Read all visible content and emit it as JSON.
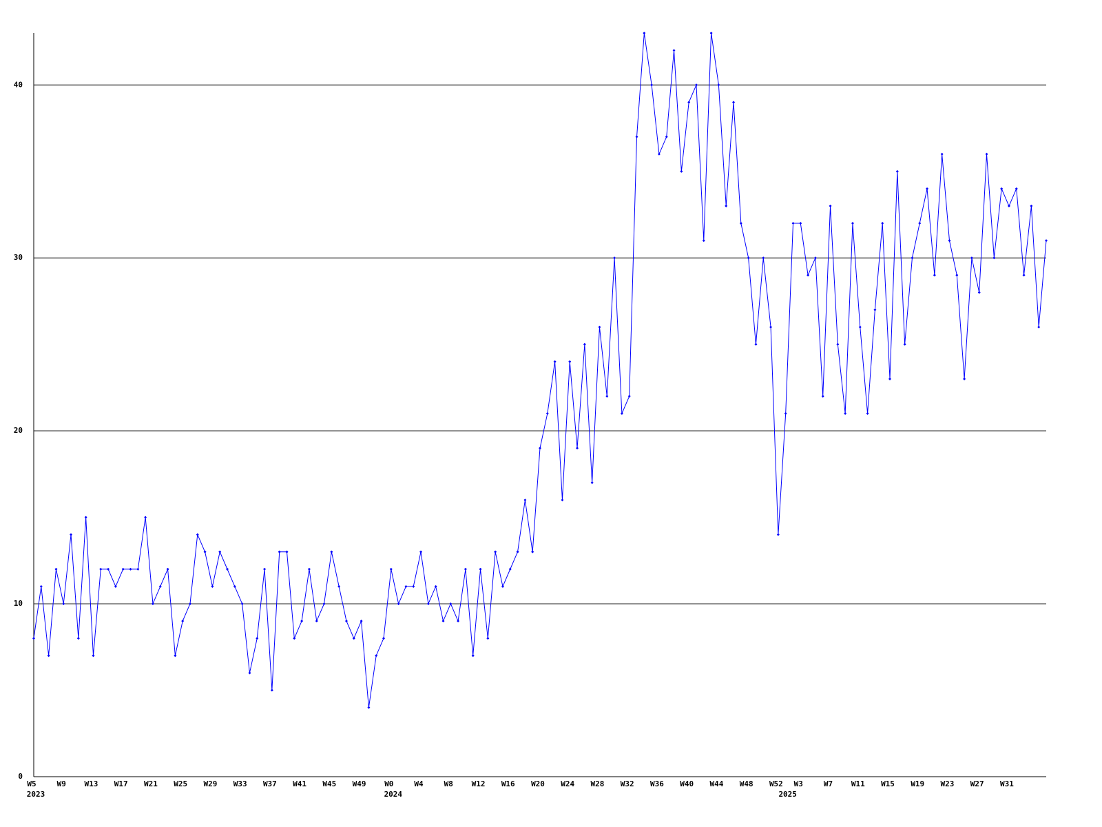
{
  "chart_data": {
    "type": "line",
    "categories": [
      "W5",
      null,
      null,
      null,
      "W9",
      null,
      null,
      null,
      "W13",
      null,
      null,
      null,
      "W17",
      null,
      null,
      null,
      "W21",
      null,
      null,
      null,
      "W25",
      null,
      null,
      null,
      "W29",
      null,
      null,
      null,
      "W33",
      null,
      null,
      null,
      "W37",
      null,
      null,
      null,
      "W41",
      null,
      null,
      null,
      "W45",
      null,
      null,
      null,
      "W49",
      null,
      null,
      null,
      "W0",
      null,
      null,
      null,
      "W4",
      null,
      null,
      null,
      "W8",
      null,
      null,
      null,
      "W12",
      null,
      null,
      null,
      "W16",
      null,
      null,
      null,
      "W20",
      null,
      null,
      null,
      "W24",
      null,
      null,
      null,
      "W28",
      null,
      null,
      null,
      "W32",
      null,
      null,
      null,
      "W36",
      null,
      null,
      null,
      "W40",
      null,
      null,
      null,
      "W44",
      null,
      null,
      null,
      "W48",
      null,
      null,
      null,
      "W52",
      null,
      null,
      "W3",
      null,
      null,
      null,
      "W7",
      null,
      null,
      null,
      "W11",
      null,
      null,
      null,
      "W15",
      null,
      null,
      null,
      "W19",
      null,
      null,
      null,
      "W23",
      null,
      null,
      null,
      "W27",
      null,
      null,
      null,
      "W31",
      null,
      null,
      null,
      null,
      null
    ],
    "categories_year": [
      "2023",
      null,
      null,
      null,
      null,
      null,
      null,
      null,
      null,
      null,
      null,
      null,
      null,
      null,
      null,
      null,
      null,
      null,
      null,
      null,
      null,
      null,
      null,
      null,
      null,
      null,
      null,
      null,
      null,
      null,
      null,
      null,
      null,
      null,
      null,
      null,
      null,
      null,
      null,
      null,
      null,
      null,
      null,
      null,
      null,
      null,
      null,
      null,
      "2024",
      null,
      null,
      null,
      null,
      null,
      null,
      null,
      null,
      null,
      null,
      null,
      null,
      null,
      null,
      null,
      null,
      null,
      null,
      null,
      null,
      null,
      null,
      null,
      null,
      null,
      null,
      null,
      null,
      null,
      null,
      null,
      null,
      null,
      null,
      null,
      null,
      null,
      null,
      null,
      null,
      null,
      null,
      null,
      null,
      null,
      null,
      null,
      null,
      null,
      null,
      null,
      null,
      "2025",
      null,
      null,
      null,
      null,
      null,
      null,
      null,
      null,
      null,
      null,
      null,
      null,
      null,
      null,
      null,
      null,
      null,
      null,
      null,
      null,
      null,
      null,
      null,
      null,
      null,
      null,
      null,
      null,
      null,
      null,
      null,
      null,
      null,
      null
    ],
    "series": [
      {
        "color": "#0000ff",
        "values": [
          8,
          11,
          7,
          12,
          10,
          14,
          8,
          15,
          7,
          12,
          12,
          11,
          12,
          12,
          12,
          15,
          10,
          11,
          12,
          7,
          9,
          10,
          14,
          13,
          11,
          13,
          12,
          11,
          10,
          6,
          8,
          12,
          5,
          13,
          13,
          8,
          9,
          12,
          9,
          10,
          13,
          11,
          9,
          8,
          9,
          4,
          7,
          8,
          12,
          10,
          11,
          11,
          13,
          10,
          11,
          9,
          10,
          9,
          12,
          7,
          12,
          8,
          13,
          11,
          12,
          13,
          16,
          13,
          19,
          21,
          24,
          16,
          24,
          19,
          25,
          17,
          26,
          22,
          30,
          21,
          22,
          37,
          43,
          40,
          36,
          37,
          42,
          35,
          39,
          40,
          31,
          43,
          40,
          33,
          39,
          32,
          30,
          25,
          30,
          26,
          14,
          21,
          32,
          32,
          29,
          30,
          22,
          33,
          25,
          21,
          32,
          26,
          21,
          27,
          32,
          23,
          35,
          25,
          30,
          32,
          34,
          29,
          36,
          31,
          29,
          23,
          30,
          28,
          36,
          30,
          34,
          33,
          34,
          29,
          33,
          26,
          31
        ]
      }
    ],
    "ylim": [
      0,
      43
    ],
    "yticks": [
      0,
      10,
      20,
      30,
      40
    ],
    "grid": true
  }
}
